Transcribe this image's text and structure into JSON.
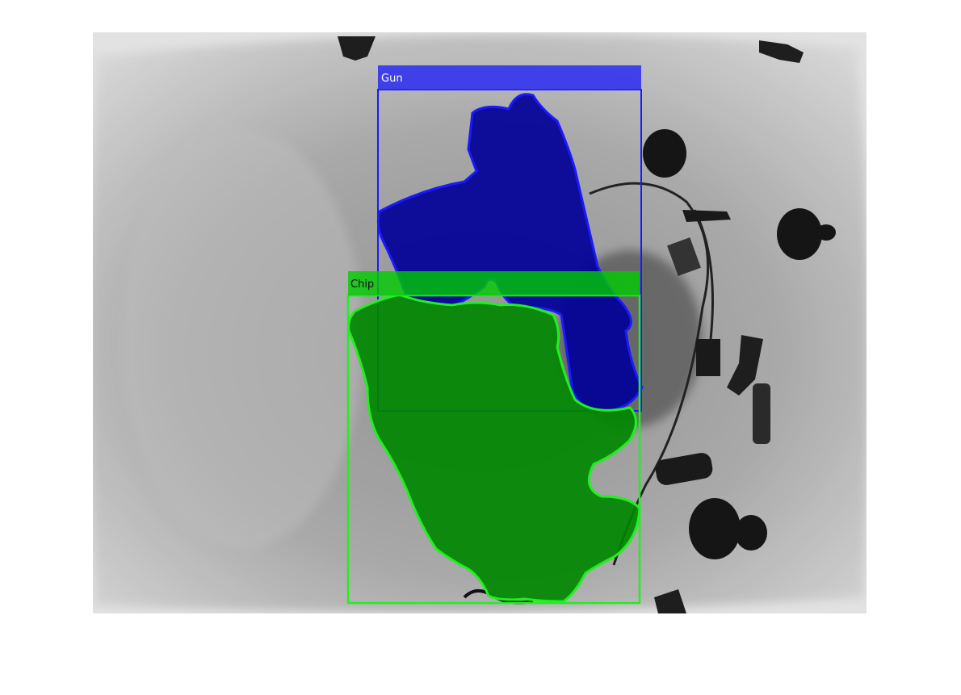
{
  "image": {
    "kind": "x-ray baggage scan with instance segmentation overlay"
  },
  "detections": [
    {
      "label": "Gun",
      "color": "#1a1aff",
      "fill": "#000099"
    },
    {
      "label": "Chip",
      "color": "#22ee22",
      "fill": "#008800"
    }
  ]
}
